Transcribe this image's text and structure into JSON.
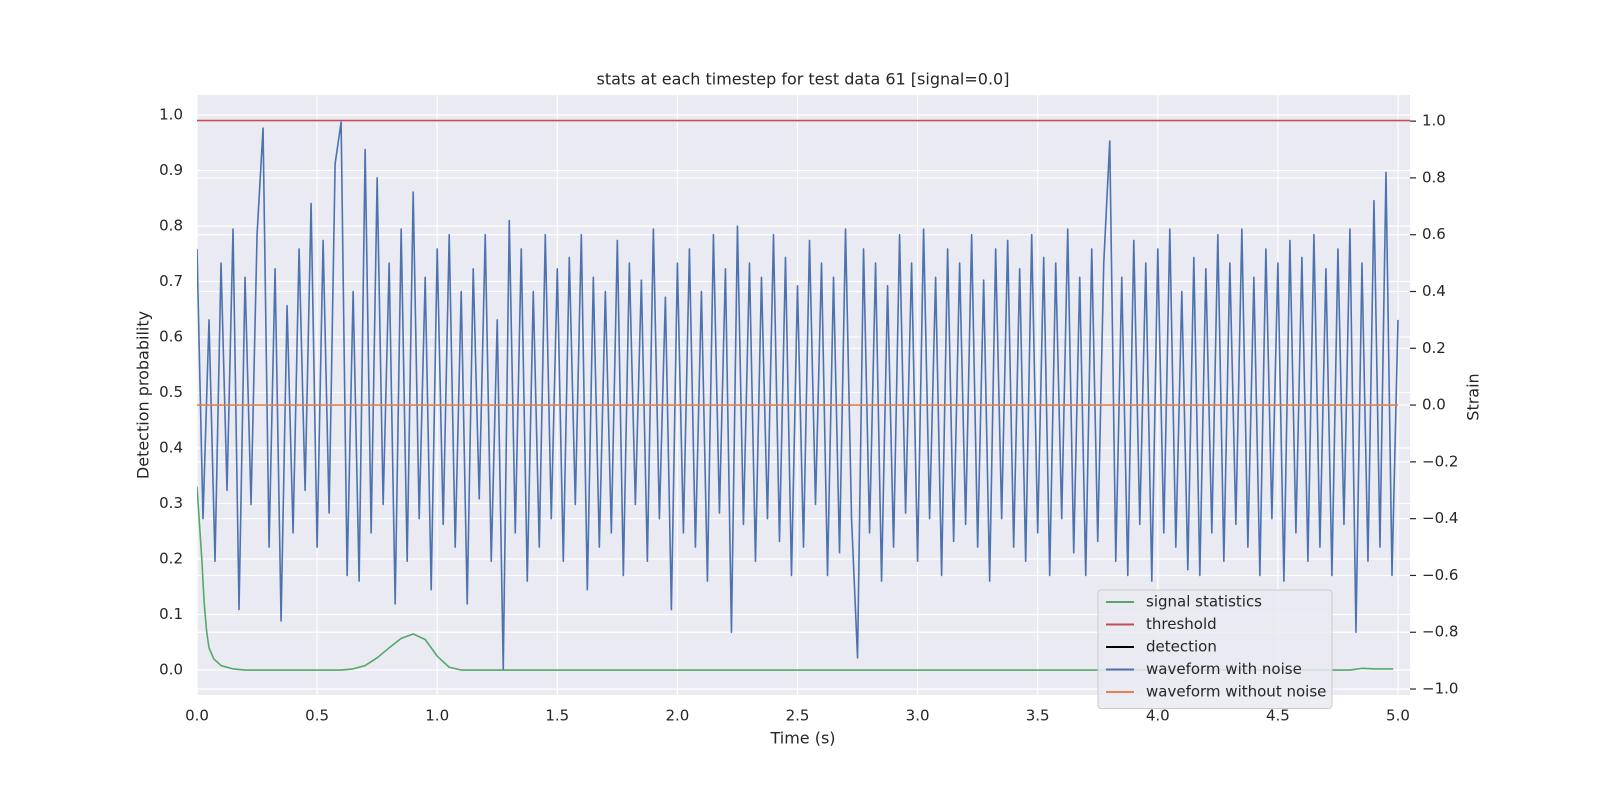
{
  "chart_data": {
    "type": "line",
    "title": "stats at each timestep for test data 61 [signal=0.0]",
    "xlabel": "Time (s)",
    "ylabel": "Detection probability",
    "y2label": "Strain",
    "xlim": [
      0,
      5.05
    ],
    "ylim": [
      -0.045,
      1.036
    ],
    "y2lim": [
      -1.021,
      1.092
    ],
    "xticks": [
      {
        "value": 0,
        "label": "0.0"
      },
      {
        "value": 0.5,
        "label": "0.5"
      },
      {
        "value": 1,
        "label": "1.0"
      },
      {
        "value": 1.5,
        "label": "1.5"
      },
      {
        "value": 2,
        "label": "2.0"
      },
      {
        "value": 2.5,
        "label": "2.5"
      },
      {
        "value": 3,
        "label": "3.0"
      },
      {
        "value": 3.5,
        "label": "3.5"
      },
      {
        "value": 4,
        "label": "4.0"
      },
      {
        "value": 4.5,
        "label": "4.5"
      },
      {
        "value": 5,
        "label": "5.0"
      }
    ],
    "yticks": [
      {
        "value": 0,
        "label": "0.0"
      },
      {
        "value": 0.1,
        "label": "0.1"
      },
      {
        "value": 0.2,
        "label": "0.2"
      },
      {
        "value": 0.3,
        "label": "0.3"
      },
      {
        "value": 0.4,
        "label": "0.4"
      },
      {
        "value": 0.5,
        "label": "0.5"
      },
      {
        "value": 0.6,
        "label": "0.6"
      },
      {
        "value": 0.7,
        "label": "0.7"
      },
      {
        "value": 0.8,
        "label": "0.8"
      },
      {
        "value": 0.9,
        "label": "0.9"
      },
      {
        "value": 1,
        "label": "1.0"
      }
    ],
    "y2ticks": [
      {
        "value": -1,
        "label": "−1.0"
      },
      {
        "value": -0.8,
        "label": "−0.8"
      },
      {
        "value": -0.6,
        "label": "−0.6"
      },
      {
        "value": -0.4,
        "label": "−0.4"
      },
      {
        "value": -0.2,
        "label": "−0.2"
      },
      {
        "value": 0,
        "label": "0.0"
      },
      {
        "value": 0.2,
        "label": "0.2"
      },
      {
        "value": 0.4,
        "label": "0.4"
      },
      {
        "value": 0.6,
        "label": "0.6"
      },
      {
        "value": 0.8,
        "label": "0.8"
      },
      {
        "value": 1,
        "label": "1.0"
      }
    ],
    "grid": true,
    "legend": "lower right",
    "series": [
      {
        "name": "signal statistics",
        "color": "#55a868",
        "axis": "y",
        "x": [
          0,
          0.02,
          0.03,
          0.04,
          0.05,
          0.07,
          0.1,
          0.15,
          0.2,
          0.6,
          0.65,
          0.7,
          0.75,
          0.8,
          0.85,
          0.9,
          0.95,
          1.0,
          1.05,
          1.1,
          1.2,
          4.8,
          4.85,
          4.9,
          4.98
        ],
        "values": [
          0.33,
          0.2,
          0.12,
          0.07,
          0.04,
          0.02,
          0.008,
          0.002,
          0.0,
          0.0,
          0.002,
          0.008,
          0.022,
          0.04,
          0.057,
          0.065,
          0.055,
          0.025,
          0.005,
          0.0,
          0.0,
          0.0,
          0.003,
          0.002,
          0.002
        ]
      },
      {
        "name": "threshold",
        "color": "#c44e52",
        "axis": "y",
        "x": [
          0,
          5.05
        ],
        "values": [
          0.99,
          0.99
        ]
      },
      {
        "name": "detection",
        "color": "#000000",
        "axis": "y",
        "x": [],
        "values": []
      },
      {
        "name": "waveform with noise",
        "color": "#4c72b0",
        "axis": "y2",
        "x": [
          0,
          0.025,
          0.05,
          0.075,
          0.1,
          0.125,
          0.15,
          0.175,
          0.2,
          0.225,
          0.25,
          0.275,
          0.3,
          0.325,
          0.35,
          0.375,
          0.4,
          0.425,
          0.45,
          0.475,
          0.5,
          0.525,
          0.55,
          0.575,
          0.6,
          0.625,
          0.65,
          0.675,
          0.7,
          0.725,
          0.75,
          0.775,
          0.8,
          0.825,
          0.85,
          0.875,
          0.9,
          0.925,
          0.95,
          0.975,
          1,
          1.025,
          1.05,
          1.075,
          1.1,
          1.125,
          1.15,
          1.175,
          1.2,
          1.225,
          1.25,
          1.275,
          1.3,
          1.325,
          1.35,
          1.375,
          1.4,
          1.425,
          1.45,
          1.475,
          1.5,
          1.525,
          1.55,
          1.575,
          1.6,
          1.625,
          1.65,
          1.675,
          1.7,
          1.725,
          1.75,
          1.775,
          1.8,
          1.825,
          1.85,
          1.875,
          1.9,
          1.925,
          1.95,
          1.975,
          2,
          2.025,
          2.05,
          2.075,
          2.1,
          2.125,
          2.15,
          2.175,
          2.2,
          2.225,
          2.25,
          2.275,
          2.3,
          2.325,
          2.35,
          2.375,
          2.4,
          2.425,
          2.45,
          2.475,
          2.5,
          2.525,
          2.55,
          2.575,
          2.6,
          2.625,
          2.65,
          2.675,
          2.7,
          2.725,
          2.75,
          2.775,
          2.8,
          2.825,
          2.85,
          2.875,
          2.9,
          2.925,
          2.95,
          2.975,
          3,
          3.025,
          3.05,
          3.075,
          3.1,
          3.125,
          3.15,
          3.175,
          3.2,
          3.225,
          3.25,
          3.275,
          3.3,
          3.325,
          3.35,
          3.375,
          3.4,
          3.425,
          3.45,
          3.475,
          3.5,
          3.525,
          3.55,
          3.575,
          3.6,
          3.625,
          3.65,
          3.675,
          3.7,
          3.725,
          3.75,
          3.775,
          3.8,
          3.825,
          3.85,
          3.875,
          3.9,
          3.925,
          3.95,
          3.975,
          4,
          4.025,
          4.05,
          4.075,
          4.1,
          4.125,
          4.15,
          4.175,
          4.2,
          4.225,
          4.25,
          4.275,
          4.3,
          4.325,
          4.35,
          4.375,
          4.4,
          4.425,
          4.45,
          4.475,
          4.5,
          4.525,
          4.55,
          4.575,
          4.6,
          4.625,
          4.65,
          4.675,
          4.7,
          4.725,
          4.75,
          4.775,
          4.8,
          4.825,
          4.85,
          4.875,
          4.9,
          4.925,
          4.95,
          4.975,
          5
        ],
        "values": [
          0.55,
          -0.4,
          0.3,
          -0.55,
          0.5,
          -0.3,
          0.62,
          -0.72,
          0.45,
          -0.35,
          0.6,
          0.975,
          -0.5,
          0.48,
          -0.76,
          0.35,
          -0.45,
          0.55,
          -0.3,
          0.71,
          -0.5,
          0.58,
          -0.38,
          0.85,
          0.996,
          -0.6,
          0.4,
          -0.62,
          0.9,
          -0.45,
          0.8,
          -0.35,
          0.5,
          -0.7,
          0.62,
          -0.55,
          0.75,
          -0.4,
          0.45,
          -0.65,
          0.55,
          -0.42,
          0.6,
          -0.5,
          0.4,
          -0.7,
          0.48,
          -0.33,
          0.6,
          -0.55,
          0.3,
          -0.93,
          0.65,
          -0.45,
          0.55,
          -0.62,
          0.4,
          -0.5,
          0.6,
          -0.4,
          0.48,
          -0.55,
          0.52,
          -0.35,
          0.6,
          -0.65,
          0.45,
          -0.5,
          0.4,
          -0.45,
          0.58,
          -0.6,
          0.5,
          -0.35,
          0.44,
          -0.55,
          0.62,
          -0.4,
          0.38,
          -0.72,
          0.5,
          -0.45,
          0.55,
          -0.5,
          0.4,
          -0.62,
          0.6,
          -0.38,
          0.48,
          -0.8,
          0.63,
          -0.42,
          0.5,
          -0.55,
          0.45,
          -0.4,
          0.6,
          -0.48,
          0.52,
          -0.6,
          0.42,
          -0.5,
          0.58,
          -0.35,
          0.5,
          -0.6,
          0.45,
          -0.52,
          0.62,
          -0.4,
          -0.89,
          0.55,
          -0.45,
          0.5,
          -0.62,
          0.42,
          -0.5,
          0.6,
          -0.38,
          0.5,
          -0.55,
          0.62,
          -0.4,
          0.45,
          -0.6,
          0.55,
          -0.48,
          0.5,
          -0.42,
          0.6,
          -0.5,
          0.44,
          -0.62,
          0.55,
          -0.4,
          0.58,
          -0.5,
          0.48,
          -0.55,
          0.6,
          -0.45,
          0.52,
          -0.6,
          0.5,
          -0.4,
          0.62,
          -0.52,
          0.45,
          -0.6,
          0.55,
          -0.48,
          0.5,
          0.93,
          -0.55,
          0.45,
          -0.6,
          0.58,
          -0.42,
          0.5,
          -0.62,
          0.55,
          -0.45,
          0.62,
          -0.5,
          0.4,
          -0.58,
          0.52,
          -0.6,
          0.48,
          -0.45,
          0.6,
          -0.55,
          0.5,
          -0.42,
          0.62,
          -0.5,
          0.45,
          -0.6,
          0.55,
          -0.4,
          0.5,
          -0.62,
          0.58,
          -0.45,
          0.52,
          -0.55,
          0.6,
          -0.5,
          0.48,
          -0.6,
          0.55,
          -0.42,
          0.62,
          -0.8,
          0.5,
          -0.55,
          0.72,
          -0.5,
          0.82,
          -0.6,
          0.3
        ]
      },
      {
        "name": "waveform without noise",
        "color": "#dd8452",
        "axis": "y2",
        "x": [
          0,
          5
        ],
        "values": [
          0,
          0
        ]
      }
    ]
  }
}
